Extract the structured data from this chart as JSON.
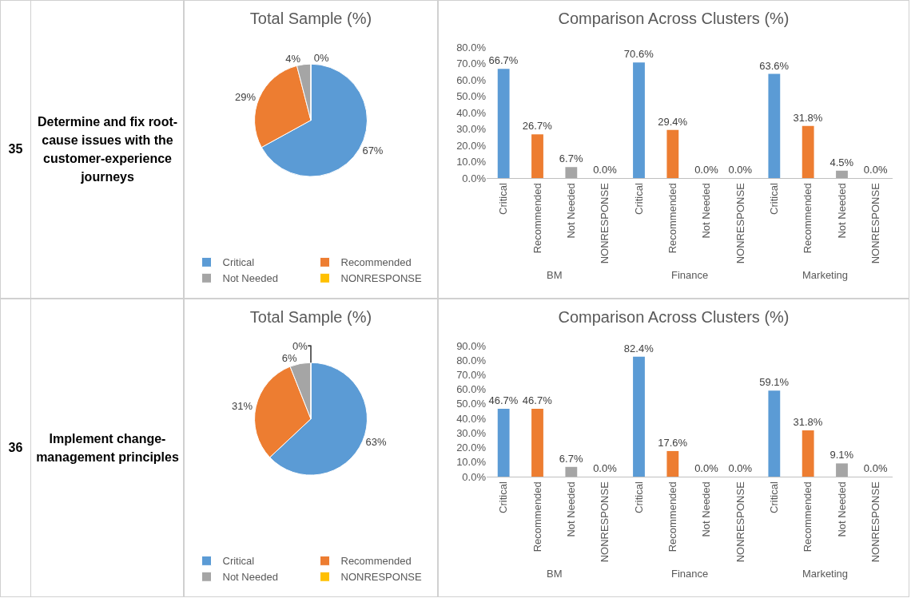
{
  "chart_data": [
    {
      "type": "other",
      "annotations": [
        "35",
        "Determine and fix root-cause issues with the customer-experience journeys"
      ]
    },
    {
      "type": "pie",
      "title": "Total Sample (%)",
      "categories": [
        "Critical",
        "Recommended",
        "Not Needed",
        "NONRESPONSE"
      ],
      "values": [
        67,
        29,
        4,
        0
      ],
      "value_labels": [
        "67%",
        "29%",
        "4%",
        "0%"
      ],
      "colors": [
        "#5b9bd5",
        "#ed7d31",
        "#a5a5a5",
        "#ffc000"
      ],
      "legend": "bottom"
    },
    {
      "type": "bar",
      "title": "Comparison Across Clusters (%)",
      "categories": [
        "Critical",
        "Recommended",
        "Not Needed",
        "NONRESPONSE",
        "Critical",
        "Recommended",
        "Not Needed",
        "NONRESPONSE",
        "Critical",
        "Recommended",
        "Not Needed",
        "NONRESPONSE"
      ],
      "values": [
        66.7,
        26.7,
        6.7,
        0,
        70.6,
        29.4,
        0,
        0,
        63.6,
        31.8,
        4.5,
        0
      ],
      "value_labels": [
        "66.7%",
        "26.7%",
        "6.7%",
        "0.0%",
        "70.6%",
        "29.4%",
        "0.0%",
        "0.0%",
        "63.6%",
        "31.8%",
        "4.5%",
        "0.0%"
      ],
      "colors": [
        "#5b9bd5",
        "#ed7d31",
        "#a5a5a5",
        "#ffc000",
        "#5b9bd5",
        "#ed7d31",
        "#a5a5a5",
        "#ffc000",
        "#5b9bd5",
        "#ed7d31",
        "#a5a5a5",
        "#ffc000"
      ],
      "annotations": [
        "BM",
        "Finance",
        "Marketing"
      ],
      "ylim": [
        0,
        80
      ],
      "yticks": [
        {
          "value": 0,
          "label": "0.0%"
        },
        {
          "value": 10,
          "label": "10.0%"
        },
        {
          "value": 20,
          "label": "20.0%"
        },
        {
          "value": 30,
          "label": "30.0%"
        },
        {
          "value": 40,
          "label": "40.0%"
        },
        {
          "value": 50,
          "label": "50.0%"
        },
        {
          "value": 60,
          "label": "60.0%"
        },
        {
          "value": 70,
          "label": "70.0%"
        },
        {
          "value": 80,
          "label": "80.0%"
        }
      ]
    },
    {
      "type": "other",
      "annotations": [
        "36",
        "Implement change-management principles"
      ]
    },
    {
      "type": "pie",
      "title": "Total Sample (%)",
      "categories": [
        "Critical",
        "Recommended",
        "Not Needed",
        "NONRESPONSE"
      ],
      "values": [
        63,
        31,
        6,
        0
      ],
      "value_labels": [
        "63%",
        "31%",
        "6%",
        "0%"
      ],
      "colors": [
        "#5b9bd5",
        "#ed7d31",
        "#a5a5a5",
        "#ffc000"
      ],
      "legend": "bottom"
    },
    {
      "type": "bar",
      "title": "Comparison Across Clusters (%)",
      "categories": [
        "Critical",
        "Recommended",
        "Not Needed",
        "NONRESPONSE",
        "Critical",
        "Recommended",
        "Not Needed",
        "NONRESPONSE",
        "Critical",
        "Recommended",
        "Not Needed",
        "NONRESPONSE"
      ],
      "values": [
        46.7,
        46.7,
        6.7,
        0,
        82.4,
        17.6,
        0,
        0,
        59.1,
        31.8,
        9.1,
        0
      ],
      "value_labels": [
        "46.7%",
        "46.7%",
        "6.7%",
        "0.0%",
        "82.4%",
        "17.6%",
        "0.0%",
        "0.0%",
        "59.1%",
        "31.8%",
        "9.1%",
        "0.0%"
      ],
      "colors": [
        "#5b9bd5",
        "#ed7d31",
        "#a5a5a5",
        "#ffc000",
        "#5b9bd5",
        "#ed7d31",
        "#a5a5a5",
        "#ffc000",
        "#5b9bd5",
        "#ed7d31",
        "#a5a5a5",
        "#ffc000"
      ],
      "annotations": [
        "BM",
        "Finance",
        "Marketing"
      ],
      "ylim": [
        0,
        90
      ],
      "yticks": [
        {
          "value": 0,
          "label": "0.0%"
        },
        {
          "value": 10,
          "label": "10.0%"
        },
        {
          "value": 20,
          "label": "20.0%"
        },
        {
          "value": 30,
          "label": "30.0%"
        },
        {
          "value": 40,
          "label": "40.0%"
        },
        {
          "value": 50,
          "label": "50.0%"
        },
        {
          "value": 60,
          "label": "60.0%"
        },
        {
          "value": 70,
          "label": "70.0%"
        },
        {
          "value": 80,
          "label": "80.0%"
        },
        {
          "value": 90,
          "label": "90.0%"
        }
      ]
    }
  ]
}
